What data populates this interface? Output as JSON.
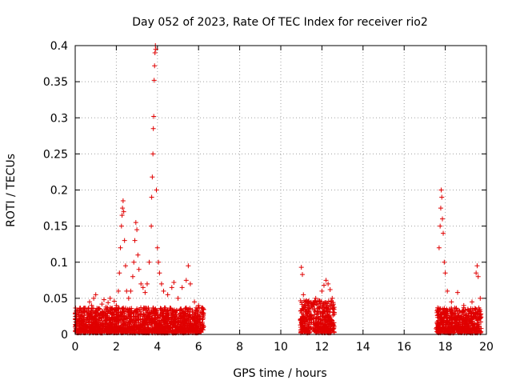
{
  "chart_data": {
    "type": "scatter",
    "title": "Day 052 of 2023, Rate Of TEC Index for receiver rio2",
    "xlabel": "GPS time / hours",
    "ylabel": "ROTI / TECUs",
    "xlim": [
      0,
      20
    ],
    "ylim": [
      0,
      0.4
    ],
    "xticks": [
      0,
      2,
      4,
      6,
      8,
      10,
      12,
      14,
      16,
      18,
      20
    ],
    "yticks": [
      0,
      0.05,
      0.1,
      0.15,
      0.2,
      0.25,
      0.3,
      0.35,
      0.4
    ],
    "ytick_labels": [
      "0",
      "0.05",
      "0.1",
      "0.15",
      "0.2",
      "0.25",
      "0.3",
      "0.35",
      "0.4"
    ],
    "grid": true,
    "marker": "+",
    "color": "#e00000",
    "segments": [
      {
        "x_start": 0.0,
        "x_end": 6.25,
        "typical_max": 0.035
      },
      {
        "x_start": 10.95,
        "x_end": 12.6,
        "typical_max": 0.045
      },
      {
        "x_start": 17.55,
        "x_end": 19.75,
        "typical_max": 0.035
      }
    ],
    "series": [
      {
        "name": "ROTI",
        "points": [
          [
            0.05,
            0.012
          ],
          [
            0.1,
            0.018
          ],
          [
            0.2,
            0.015
          ],
          [
            0.3,
            0.02
          ],
          [
            0.4,
            0.022
          ],
          [
            0.5,
            0.014
          ],
          [
            0.6,
            0.028
          ],
          [
            0.7,
            0.045
          ],
          [
            0.8,
            0.04
          ],
          [
            0.9,
            0.05
          ],
          [
            1.0,
            0.055
          ],
          [
            1.1,
            0.03
          ],
          [
            1.2,
            0.035
          ],
          [
            1.3,
            0.042
          ],
          [
            1.4,
            0.048
          ],
          [
            1.5,
            0.038
          ],
          [
            1.6,
            0.044
          ],
          [
            1.7,
            0.05
          ],
          [
            1.8,
            0.035
          ],
          [
            1.9,
            0.046
          ],
          [
            2.0,
            0.04
          ],
          [
            2.1,
            0.06
          ],
          [
            2.15,
            0.085
          ],
          [
            2.2,
            0.12
          ],
          [
            2.25,
            0.15
          ],
          [
            2.28,
            0.165
          ],
          [
            2.3,
            0.175
          ],
          [
            2.33,
            0.185
          ],
          [
            2.36,
            0.17
          ],
          [
            2.4,
            0.13
          ],
          [
            2.45,
            0.095
          ],
          [
            2.5,
            0.06
          ],
          [
            2.6,
            0.05
          ],
          [
            2.7,
            0.06
          ],
          [
            2.8,
            0.08
          ],
          [
            2.85,
            0.1
          ],
          [
            2.9,
            0.13
          ],
          [
            2.95,
            0.155
          ],
          [
            3.0,
            0.145
          ],
          [
            3.05,
            0.11
          ],
          [
            3.1,
            0.09
          ],
          [
            3.2,
            0.07
          ],
          [
            3.3,
            0.065
          ],
          [
            3.4,
            0.058
          ],
          [
            3.5,
            0.07
          ],
          [
            3.6,
            0.1
          ],
          [
            3.7,
            0.15
          ],
          [
            3.72,
            0.19
          ],
          [
            3.75,
            0.218
          ],
          [
            3.78,
            0.25
          ],
          [
            3.8,
            0.285
          ],
          [
            3.82,
            0.302
          ],
          [
            3.84,
            0.352
          ],
          [
            3.86,
            0.372
          ],
          [
            3.88,
            0.39
          ],
          [
            3.9,
            0.4
          ],
          [
            3.92,
            0.395
          ],
          [
            3.95,
            0.2
          ],
          [
            4.0,
            0.12
          ],
          [
            4.05,
            0.1
          ],
          [
            4.1,
            0.085
          ],
          [
            4.2,
            0.07
          ],
          [
            4.3,
            0.06
          ],
          [
            4.5,
            0.055
          ],
          [
            4.7,
            0.065
          ],
          [
            4.8,
            0.072
          ],
          [
            5.0,
            0.05
          ],
          [
            5.2,
            0.065
          ],
          [
            5.4,
            0.075
          ],
          [
            5.5,
            0.095
          ],
          [
            5.6,
            0.07
          ],
          [
            5.8,
            0.045
          ],
          [
            6.0,
            0.04
          ],
          [
            6.2,
            0.03
          ],
          [
            11.0,
            0.093
          ],
          [
            11.05,
            0.083
          ],
          [
            11.1,
            0.055
          ],
          [
            11.3,
            0.045
          ],
          [
            11.5,
            0.04
          ],
          [
            11.7,
            0.05
          ],
          [
            11.9,
            0.045
          ],
          [
            12.0,
            0.06
          ],
          [
            12.1,
            0.068
          ],
          [
            12.2,
            0.075
          ],
          [
            12.3,
            0.07
          ],
          [
            12.4,
            0.062
          ],
          [
            12.5,
            0.05
          ],
          [
            17.6,
            0.03
          ],
          [
            17.7,
            0.12
          ],
          [
            17.75,
            0.15
          ],
          [
            17.78,
            0.175
          ],
          [
            17.8,
            0.2
          ],
          [
            17.83,
            0.19
          ],
          [
            17.86,
            0.16
          ],
          [
            17.9,
            0.14
          ],
          [
            17.95,
            0.1
          ],
          [
            18.0,
            0.085
          ],
          [
            18.1,
            0.06
          ],
          [
            18.3,
            0.045
          ],
          [
            18.6,
            0.058
          ],
          [
            18.9,
            0.04
          ],
          [
            19.1,
            0.035
          ],
          [
            19.3,
            0.045
          ],
          [
            19.5,
            0.085
          ],
          [
            19.55,
            0.095
          ],
          [
            19.6,
            0.08
          ],
          [
            19.7,
            0.05
          ]
        ]
      }
    ]
  }
}
